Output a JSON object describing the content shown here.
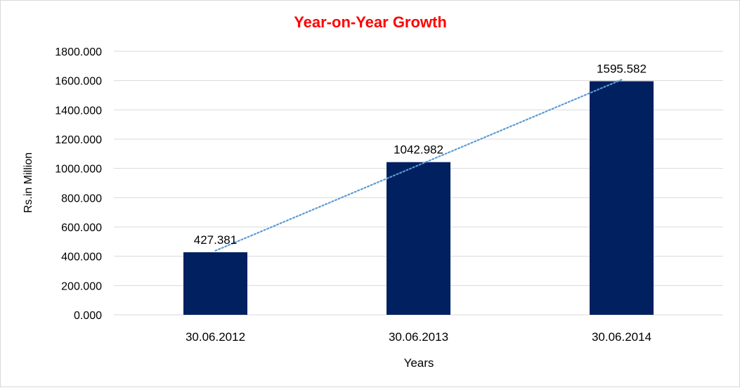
{
  "chart_data": {
    "type": "bar",
    "title": "Year-on-Year Growth",
    "xlabel": "Years",
    "ylabel": "Rs.in Million",
    "categories": [
      "30.06.2012",
      "30.06.2013",
      "30.06.2014"
    ],
    "values": [
      427.381,
      1042.982,
      1595.582
    ],
    "value_labels": [
      "427.381",
      "1042.982",
      "1595.582"
    ],
    "ylim": [
      0,
      1800
    ],
    "yticks": [
      0,
      200,
      400,
      600,
      800,
      1000,
      1200,
      1400,
      1600,
      1800
    ],
    "ytick_labels": [
      "0.000",
      "200.000",
      "400.000",
      "600.000",
      "800.000",
      "1000.000",
      "1200.000",
      "1400.000",
      "1600.000",
      "1800.000"
    ],
    "grid": true,
    "legend": false,
    "trendline": "linear dotted",
    "colors": {
      "bar": "#002060",
      "title": "#ff0000",
      "trendline": "#5b9bd5",
      "grid": "#d9d9d9"
    }
  }
}
